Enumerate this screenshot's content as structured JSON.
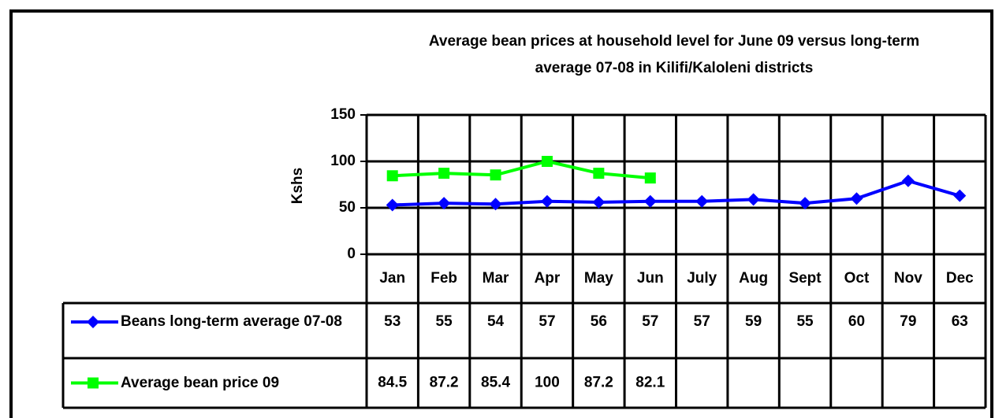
{
  "chart_data": {
    "type": "line",
    "title": "Average bean prices at household level for June 09 versus long-term average 07-08 in Kilifi/Kaloleni districts",
    "y_label": "Kshs",
    "categories": [
      "Jan",
      "Feb",
      "Mar",
      "Apr",
      "May",
      "Jun",
      "July",
      "Aug",
      "Sept",
      "Oct",
      "Nov",
      "Dec"
    ],
    "series": [
      {
        "name": "Beans long-term average 07-08",
        "color": "#0000ff",
        "marker": "diamond",
        "values": [
          53,
          55,
          54,
          57,
          56,
          57,
          57,
          59,
          55,
          60,
          79,
          63
        ]
      },
      {
        "name": "Average bean price 09",
        "color": "#00ff00",
        "marker": "square",
        "values": [
          84.5,
          87.2,
          85.4,
          100,
          87.2,
          82.1,
          null,
          null,
          null,
          null,
          null,
          null
        ]
      }
    ],
    "ylim": [
      0,
      150
    ],
    "yticks": [
      0,
      50,
      100,
      150
    ],
    "grid": true,
    "data_table": true
  }
}
